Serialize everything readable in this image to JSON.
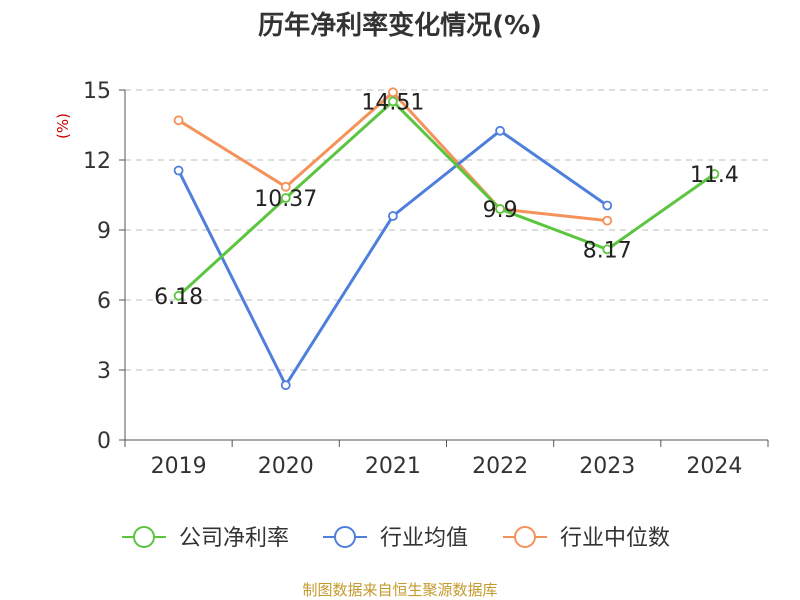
{
  "chart_data": {
    "type": "line",
    "title": "历年净利率变化情况(%)",
    "ylabel": "(%)",
    "categories": [
      "2019",
      "2020",
      "2021",
      "2022",
      "2023",
      "2024"
    ],
    "ylim": [
      0,
      15
    ],
    "yticks": [
      0,
      3,
      6,
      9,
      12,
      15
    ],
    "grid": true,
    "legend_position": "bottom",
    "series": [
      {
        "name": "公司净利率",
        "color": "#5cc53f",
        "values": [
          6.18,
          10.37,
          14.51,
          9.9,
          8.17,
          11.4
        ],
        "labels": [
          "6.18",
          "10.37",
          "14.51",
          "9.9",
          "8.17",
          "11.4"
        ]
      },
      {
        "name": "行业均值",
        "color": "#4e7fdc",
        "values": [
          11.55,
          2.35,
          9.6,
          13.25,
          10.05,
          null
        ]
      },
      {
        "name": "行业中位数",
        "color": "#f4925a",
        "values": [
          13.7,
          10.85,
          14.9,
          9.9,
          9.4,
          null
        ]
      }
    ]
  },
  "source": "制图数据来自恒生聚源数据库"
}
